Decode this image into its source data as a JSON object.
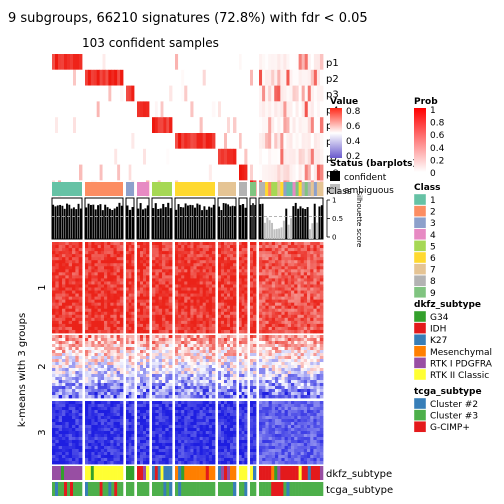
{
  "chart_data": {
    "type": "heatmap",
    "title": "9 subgroups, 66210 signatures (72.8%) with fdr < 0.05",
    "subtitle": "103 confident samples",
    "row_title": "k-means with 3 groups",
    "row_clusters": [
      "1",
      "2",
      "3"
    ],
    "column_groups": [
      {
        "class": "1",
        "width": 30
      },
      {
        "class": "2",
        "width": 38
      },
      {
        "class": "3",
        "width": 8
      },
      {
        "class": "4",
        "width": 12
      },
      {
        "class": "5",
        "width": 20
      },
      {
        "class": "6",
        "width": 40
      },
      {
        "class": "7",
        "width": 18
      },
      {
        "class": "8",
        "width": 8
      },
      {
        "class": "9",
        "width": 6
      },
      {
        "class": "mixed",
        "width": 64
      }
    ],
    "top_rows": [
      "p1",
      "p2",
      "p3",
      "p4",
      "p5",
      "p6",
      "p7",
      "p8",
      "p9"
    ],
    "bottom_rows": [
      "dkfz_subtype",
      "tcga_subtype"
    ],
    "silhouette_axis": {
      "label": "Silhouette score",
      "ticks": [
        "1",
        "0.5",
        "0"
      ]
    },
    "legends": {
      "value": {
        "title": "Value",
        "ticks": [
          "0.8",
          "0.6",
          "0.4",
          "0.2"
        ]
      },
      "prob": {
        "title": "Prob",
        "ticks": [
          "1",
          "0.8",
          "0.6",
          "0.4",
          "0.2",
          "0"
        ],
        "colors": [
          "#ff0000",
          "#ffffff"
        ]
      },
      "status": {
        "title": "Status (barplots)",
        "items": [
          {
            "label": "confident",
            "color": "#000000"
          },
          {
            "label": "ambiguous",
            "color": "#bebebe"
          }
        ]
      },
      "class": {
        "title": "Class",
        "items": [
          {
            "label": "1",
            "color": "#66c2a5"
          },
          {
            "label": "2",
            "color": "#fc8d62"
          },
          {
            "label": "3",
            "color": "#8da0cb"
          },
          {
            "label": "4",
            "color": "#e78ac3"
          },
          {
            "label": "5",
            "color": "#a6d854"
          },
          {
            "label": "6",
            "color": "#ffd92f"
          },
          {
            "label": "7",
            "color": "#e5c494"
          },
          {
            "label": "8",
            "color": "#b3b3b3"
          },
          {
            "label": "9",
            "color": "#80c480"
          }
        ]
      },
      "dkfz": {
        "title": "dkfz_subtype",
        "items": [
          {
            "label": "G34",
            "color": "#33a02c"
          },
          {
            "label": "IDH",
            "color": "#e31a1c"
          },
          {
            "label": "K27",
            "color": "#377eb8"
          },
          {
            "label": "Mesenchymal",
            "color": "#ff7f00"
          },
          {
            "label": "RTK I PDGFRA",
            "color": "#984ea3"
          },
          {
            "label": "RTK II Classic",
            "color": "#ffff33"
          }
        ]
      },
      "tcga": {
        "title": "tcga_subtype",
        "items": [
          {
            "label": "Cluster #2",
            "color": "#377eb8"
          },
          {
            "label": "Cluster #3",
            "color": "#4daf4a"
          },
          {
            "label": "G-CIMP+",
            "color": "#e41a1c"
          }
        ]
      },
      "overlap_labels": [
        "Class"
      ]
    }
  }
}
